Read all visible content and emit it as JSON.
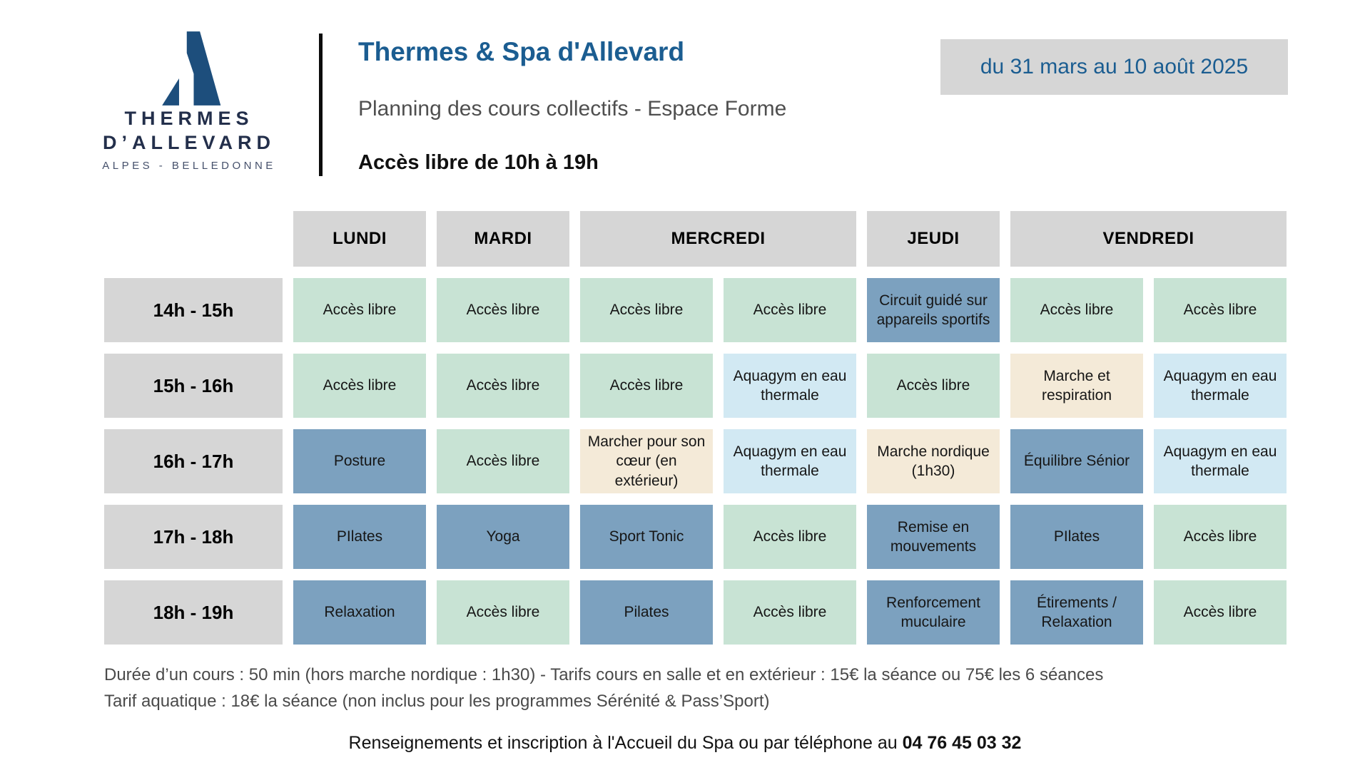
{
  "brand": {
    "logo_line1": "THERMES",
    "logo_line2": "D’ALLEVARD",
    "logo_tagline": "ALPES - BELLEDONNE"
  },
  "header": {
    "title": "Thermes & Spa d'Allevard",
    "subtitle": "Planning des cours collectifs - Espace Forme",
    "access_note": "Accès libre de 10h à 19h",
    "date_range": "du 31 mars au 10 août 2025"
  },
  "colors": {
    "accent_blue": "#1b5d91",
    "navy": "#232f4b",
    "header_gray": "#d6d6d6",
    "cell_free": "#c8e3d4",
    "cell_course": "#7ca1bf",
    "cell_aqua": "#d2e9f3",
    "cell_outdoor": "#f4ead8"
  },
  "schedule": {
    "days": [
      {
        "label": "LUNDI",
        "span": 1
      },
      {
        "label": "MARDI",
        "span": 1
      },
      {
        "label": "MERCREDI",
        "span": 2
      },
      {
        "label": "JEUDI",
        "span": 1
      },
      {
        "label": "VENDREDI",
        "span": 2
      }
    ],
    "rows": [
      {
        "time": "14h - 15h",
        "cells": [
          {
            "label": "Accès libre",
            "type": "free"
          },
          {
            "label": "Accès libre",
            "type": "free"
          },
          {
            "label": "Accès libre",
            "type": "free"
          },
          {
            "label": "Accès libre",
            "type": "free"
          },
          {
            "label": "Circuit guidé sur appareils sportifs",
            "type": "course"
          },
          {
            "label": "Accès libre",
            "type": "free"
          },
          {
            "label": "Accès libre",
            "type": "free"
          }
        ]
      },
      {
        "time": "15h - 16h",
        "cells": [
          {
            "label": "Accès libre",
            "type": "free"
          },
          {
            "label": "Accès libre",
            "type": "free"
          },
          {
            "label": "Accès libre",
            "type": "free"
          },
          {
            "label": "Aquagym en eau thermale",
            "type": "aqua"
          },
          {
            "label": "Accès libre",
            "type": "free"
          },
          {
            "label": "Marche et respiration",
            "type": "outdoor"
          },
          {
            "label": "Aquagym en eau thermale",
            "type": "aqua"
          }
        ]
      },
      {
        "time": "16h - 17h",
        "cells": [
          {
            "label": "Posture",
            "type": "course"
          },
          {
            "label": "Accès libre",
            "type": "free"
          },
          {
            "label": "Marcher pour son cœur (en extérieur)",
            "type": "outdoor"
          },
          {
            "label": "Aquagym en eau thermale",
            "type": "aqua"
          },
          {
            "label": "Marche nordique (1h30)",
            "type": "outdoor"
          },
          {
            "label": "Équilibre Sénior",
            "type": "course"
          },
          {
            "label": "Aquagym en eau thermale",
            "type": "aqua"
          }
        ]
      },
      {
        "time": "17h - 18h",
        "cells": [
          {
            "label": "PIlates",
            "type": "course"
          },
          {
            "label": "Yoga",
            "type": "course"
          },
          {
            "label": "Sport Tonic",
            "type": "course"
          },
          {
            "label": "Accès libre",
            "type": "free"
          },
          {
            "label": "Remise en mouvements",
            "type": "course"
          },
          {
            "label": "PIlates",
            "type": "course"
          },
          {
            "label": "Accès libre",
            "type": "free"
          }
        ]
      },
      {
        "time": "18h - 19h",
        "cells": [
          {
            "label": "Relaxation",
            "type": "course"
          },
          {
            "label": "Accès libre",
            "type": "free"
          },
          {
            "label": "Pilates",
            "type": "course"
          },
          {
            "label": "Accès libre",
            "type": "free"
          },
          {
            "label": "Renforcement muculaire",
            "type": "course"
          },
          {
            "label": "Étirements / Relaxation",
            "type": "course"
          },
          {
            "label": "Accès libre",
            "type": "free"
          }
        ]
      }
    ]
  },
  "footer": {
    "pricing_line1": "Durée d’un cours : 50 min (hors marche nordique : 1h30) - Tarifs cours en salle et en extérieur : 15€ la séance ou 75€ les 6 séances",
    "pricing_line2": "Tarif aquatique : 18€ la séance (non inclus pour les programmes Sérénité & Pass’Sport)",
    "contact_prefix": "Renseignements et inscription à l'Accueil du Spa ou par téléphone au ",
    "phone": "04 76 45 03 32"
  }
}
